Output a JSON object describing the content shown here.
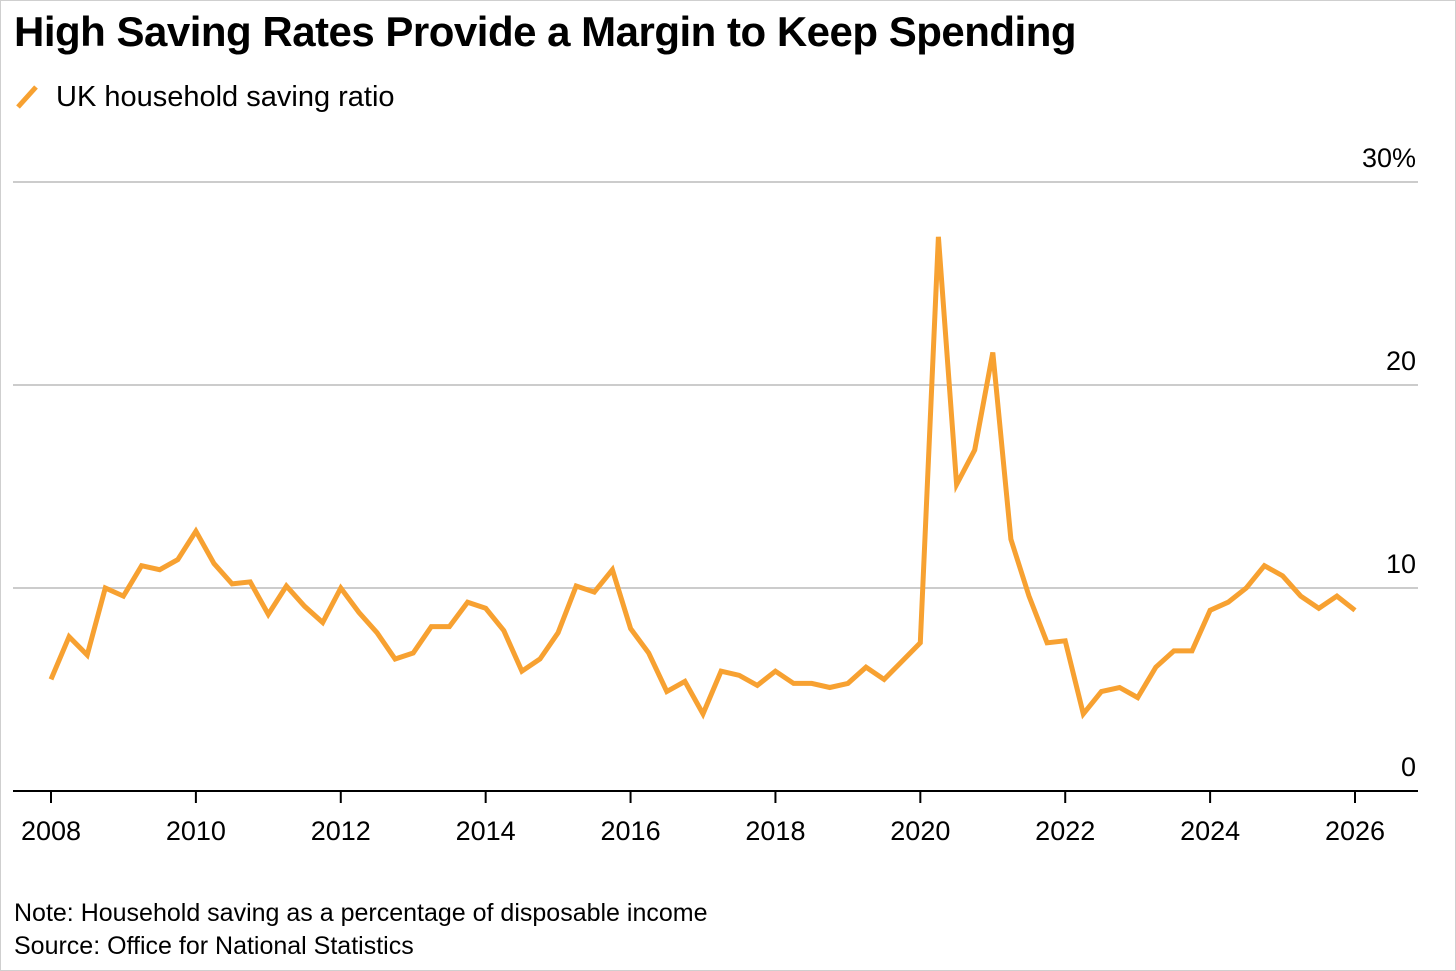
{
  "title": "High Saving Rates Provide a Margin to Keep Spending",
  "legend": {
    "label": "UK household saving ratio",
    "color": "#f7a131"
  },
  "note": "Note: Household saving as a percentage of disposable income",
  "source": "Source: Office for National Statistics",
  "chart_data": {
    "type": "line",
    "title": "High Saving Rates Provide a Margin to Keep Spending",
    "xlabel": "",
    "ylabel": "",
    "xlim": [
      2008,
      2026
    ],
    "ylim": [
      0,
      30
    ],
    "grid": true,
    "legend_position": "top-left",
    "x_ticks": [
      "2008",
      "2010",
      "2012",
      "2014",
      "2016",
      "2018",
      "2020",
      "2022",
      "2024",
      "2026"
    ],
    "y_ticks": [
      "0",
      "10",
      "20",
      "30%"
    ],
    "y_tick_values": [
      0,
      10,
      20,
      30
    ],
    "series": [
      {
        "name": "UK household saving ratio",
        "color": "#f7a131",
        "x": [
          2008.0,
          2008.25,
          2008.5,
          2008.75,
          2009.0,
          2009.25,
          2009.5,
          2009.75,
          2010.0,
          2010.25,
          2010.5,
          2010.75,
          2011.0,
          2011.25,
          2011.5,
          2011.75,
          2012.0,
          2012.25,
          2012.5,
          2012.75,
          2013.0,
          2013.25,
          2013.5,
          2013.75,
          2014.0,
          2014.25,
          2014.5,
          2014.75,
          2015.0,
          2015.25,
          2015.5,
          2015.75,
          2016.0,
          2016.25,
          2016.5,
          2016.75,
          2017.0,
          2017.25,
          2017.5,
          2017.75,
          2018.0,
          2018.25,
          2018.5,
          2018.75,
          2019.0,
          2019.25,
          2019.5,
          2019.75,
          2020.0,
          2020.25,
          2020.5,
          2020.75,
          2021.0,
          2021.25,
          2021.5,
          2021.75,
          2022.0,
          2022.25,
          2022.5,
          2022.75,
          2023.0,
          2023.25,
          2023.5,
          2023.75,
          2024.0,
          2024.25,
          2024.5,
          2024.75,
          2025.0,
          2025.25,
          2025.5,
          2025.75,
          2026.0
        ],
        "values": [
          5.5,
          7.6,
          6.7,
          10.0,
          9.6,
          11.1,
          10.9,
          11.4,
          12.8,
          11.2,
          10.2,
          10.3,
          8.7,
          10.1,
          9.1,
          8.3,
          10.0,
          8.8,
          7.8,
          6.5,
          6.8,
          8.1,
          8.1,
          9.3,
          9.0,
          7.9,
          5.9,
          6.5,
          7.8,
          10.1,
          9.8,
          10.9,
          8.0,
          6.8,
          4.9,
          5.4,
          3.8,
          5.9,
          5.7,
          5.2,
          5.9,
          5.3,
          5.3,
          5.1,
          5.3,
          6.1,
          5.5,
          6.4,
          7.3,
          27.3,
          15.1,
          16.8,
          21.6,
          12.4,
          9.6,
          7.3,
          7.4,
          3.8,
          4.9,
          5.1,
          4.6,
          6.1,
          6.9,
          6.9,
          8.9,
          9.3,
          10.0,
          11.1,
          10.6,
          9.6,
          9.0,
          9.6,
          8.9
        ]
      }
    ]
  }
}
